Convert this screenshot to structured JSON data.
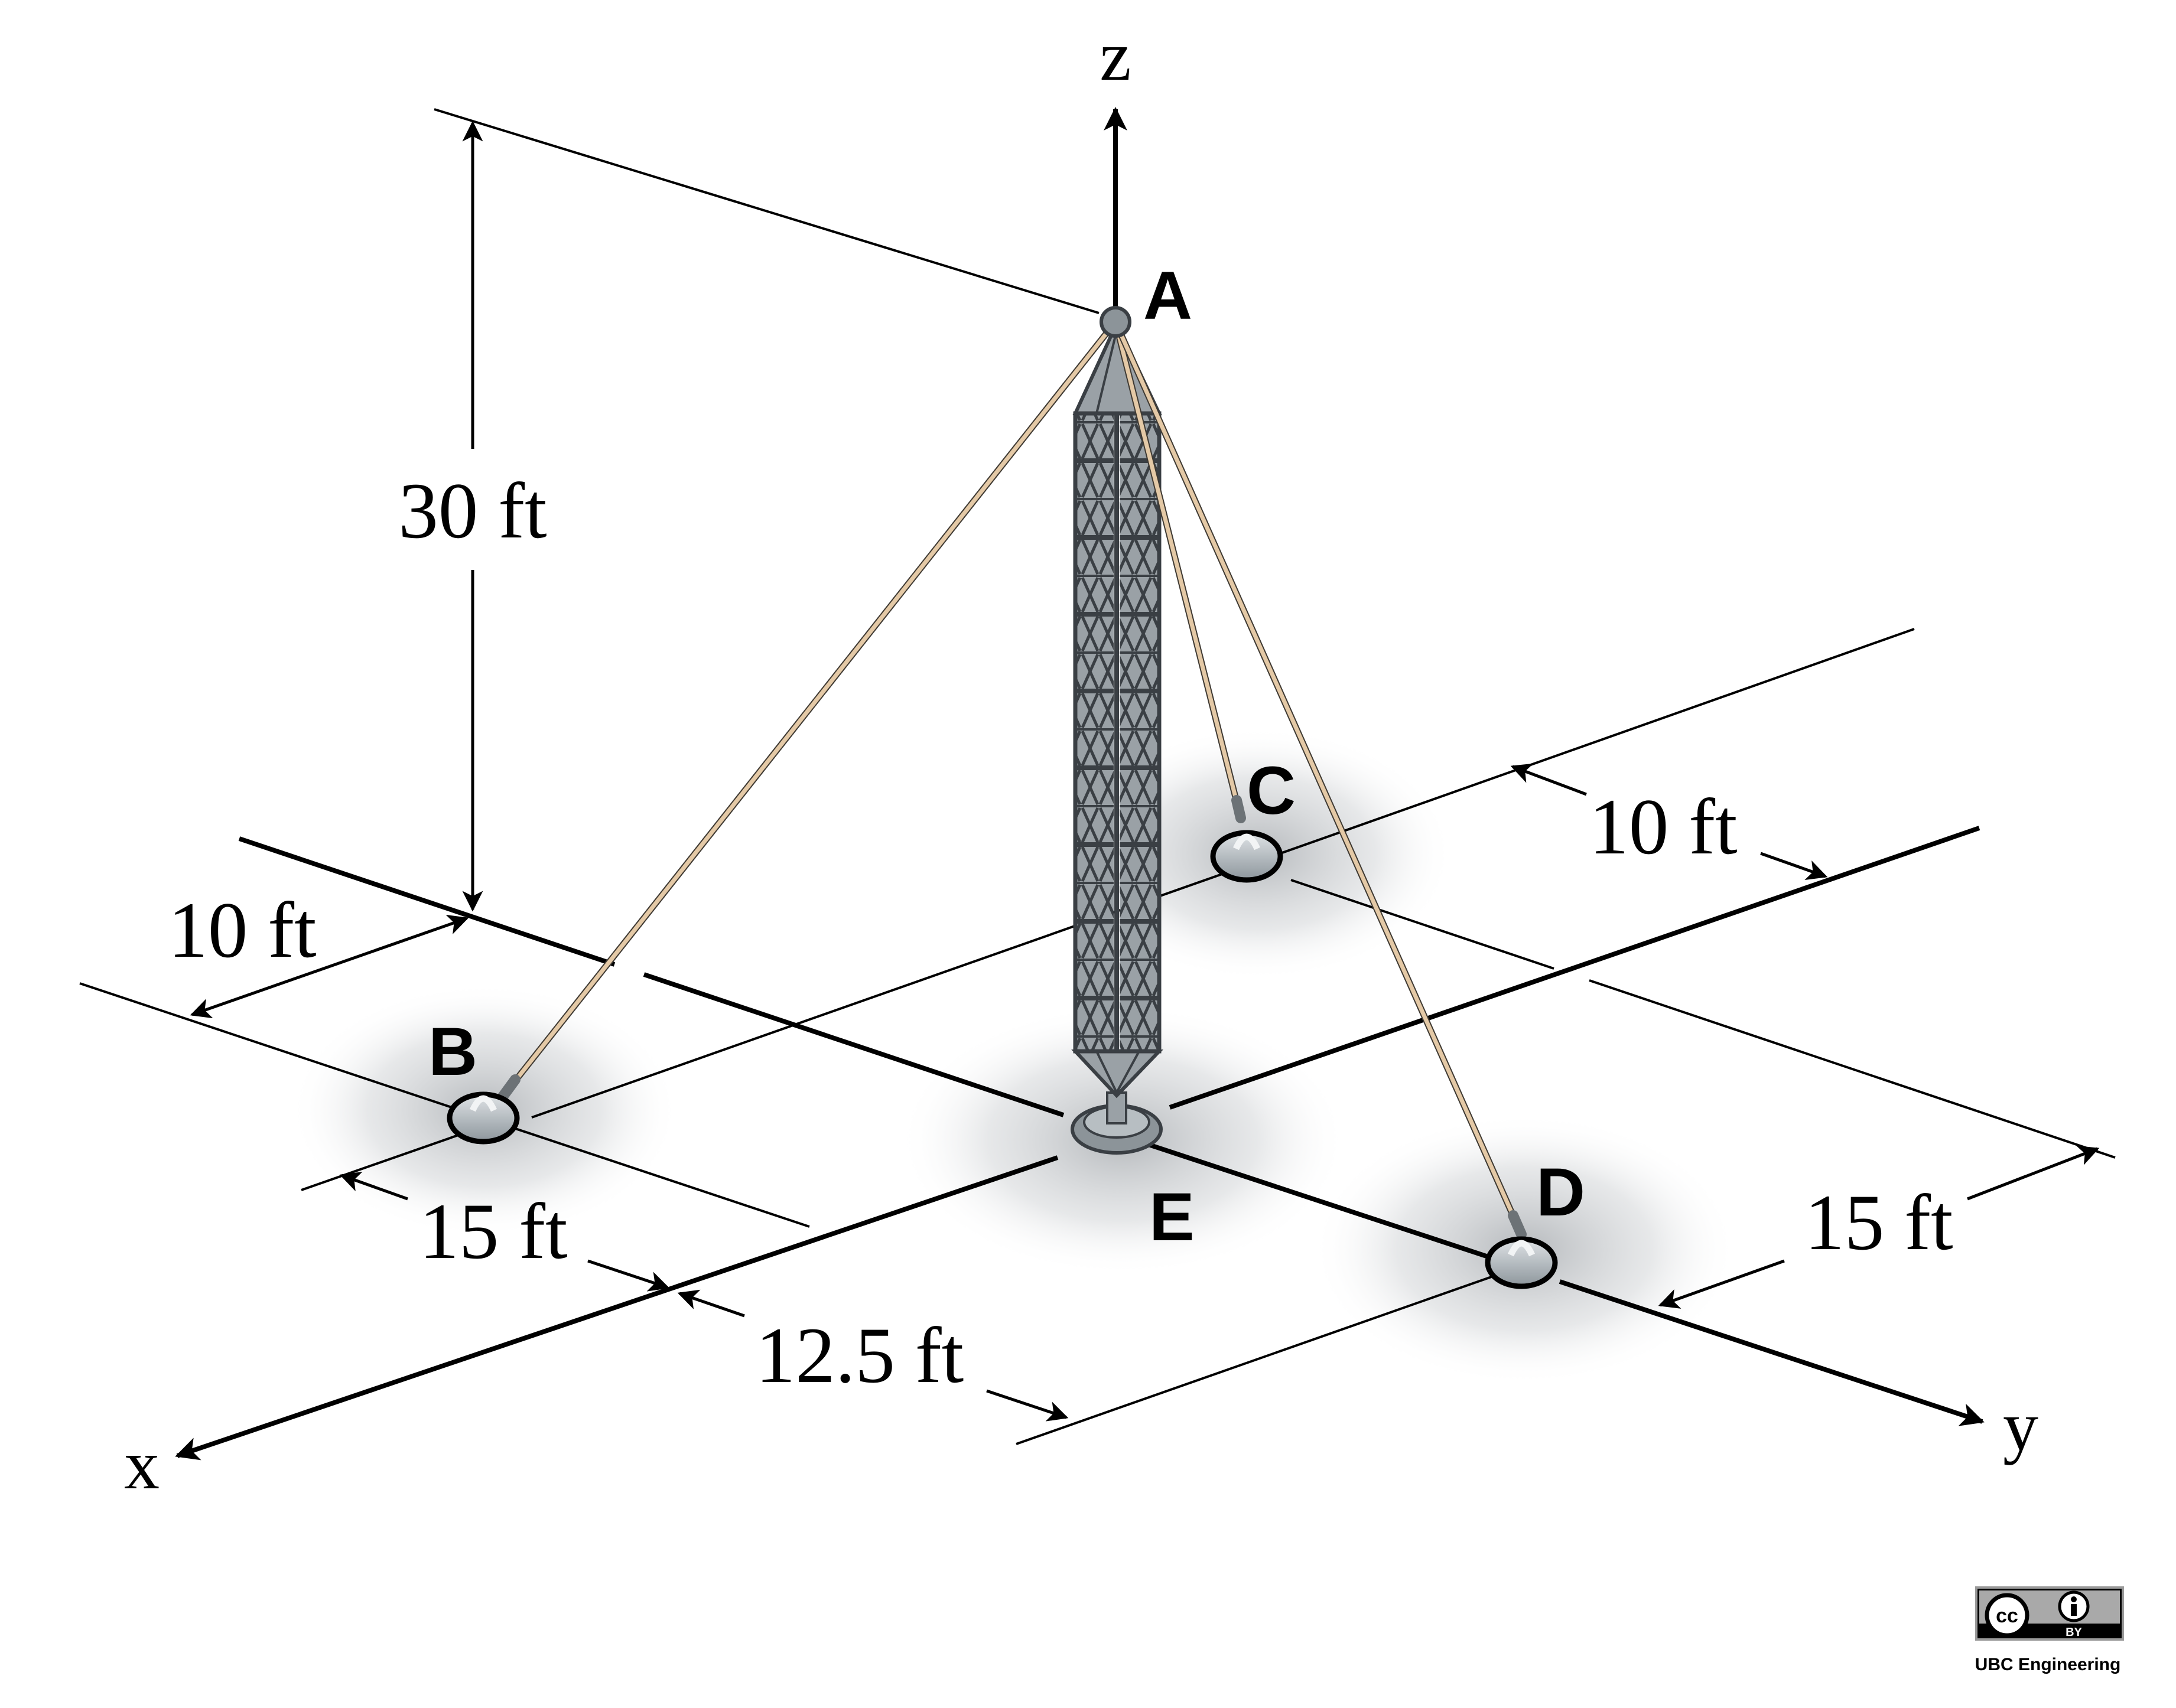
{
  "axes": {
    "x": "x",
    "y": "y",
    "z": "z"
  },
  "points": {
    "A": "A",
    "B": "B",
    "C": "C",
    "D": "D",
    "E": "E"
  },
  "dimensions": {
    "height": "30 ft",
    "x_offset_left": "10 ft",
    "x_offset_right": "10 ft",
    "y_offset_left": "15 ft",
    "y_offset_right": "15 ft",
    "y_offset_mid": "12.5 ft"
  },
  "license": {
    "badge_left": "cc",
    "badge_right": "BY",
    "credit": "UBC Engineering"
  },
  "colors": {
    "cable": "#e4c9a6",
    "tower": "#8c9499",
    "tower_dark": "#3a3f44",
    "shadow": "#b9bcbf"
  }
}
